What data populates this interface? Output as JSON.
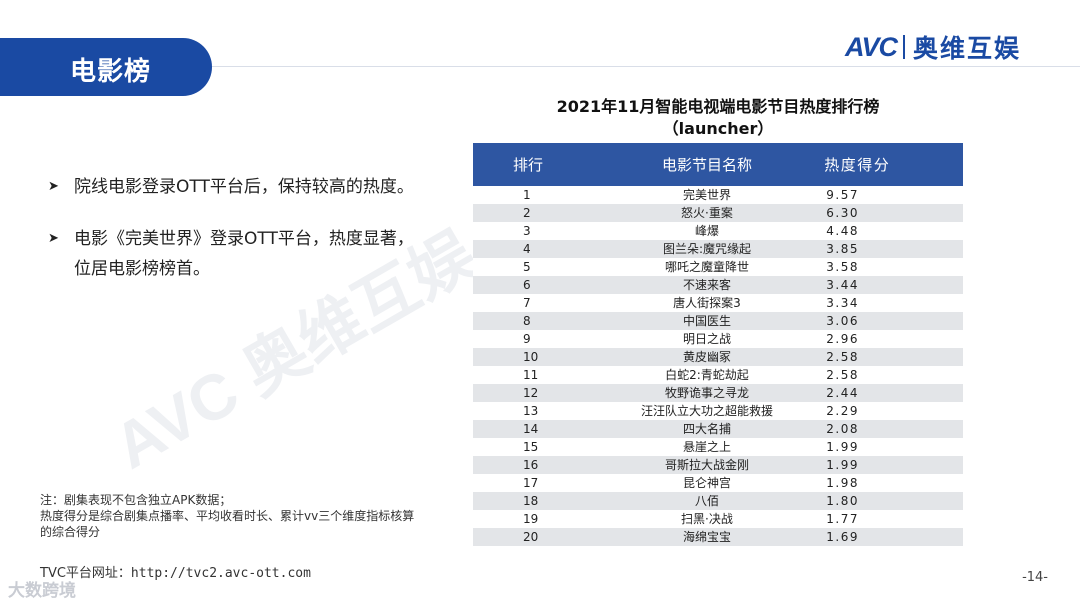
{
  "header": {
    "section_title": "电影榜",
    "logo_avc": "AVC",
    "logo_cn": "奥维互娱"
  },
  "bullets": [
    "院线电影登录OTT平台后，保持较高的热度。",
    "电影《完美世界》登录OTT平台，热度显著，位居电影榜榜首。"
  ],
  "table": {
    "title_line1": "2021年11月智能电视端电影节目热度排行榜",
    "title_line2": "（launcher）",
    "headers": [
      "排行",
      "电影节目名称",
      "热度得分"
    ],
    "rows": [
      {
        "rank": "1",
        "name": "完美世界",
        "score": "9.57"
      },
      {
        "rank": "2",
        "name": "怒火·重案",
        "score": "6.30"
      },
      {
        "rank": "3",
        "name": "峰爆",
        "score": "4.48"
      },
      {
        "rank": "4",
        "name": "图兰朵:魔咒缘起",
        "score": "3.85"
      },
      {
        "rank": "5",
        "name": "哪吒之魔童降世",
        "score": "3.58"
      },
      {
        "rank": "6",
        "name": "不速来客",
        "score": "3.44"
      },
      {
        "rank": "7",
        "name": "唐人街探案3",
        "score": "3.34"
      },
      {
        "rank": "8",
        "name": "中国医生",
        "score": "3.06"
      },
      {
        "rank": "9",
        "name": "明日之战",
        "score": "2.96"
      },
      {
        "rank": "10",
        "name": "黄皮幽冢",
        "score": "2.58"
      },
      {
        "rank": "11",
        "name": "白蛇2:青蛇劫起",
        "score": "2.58"
      },
      {
        "rank": "12",
        "name": "牧野诡事之寻龙",
        "score": "2.44"
      },
      {
        "rank": "13",
        "name": "汪汪队立大功之超能救援",
        "score": "2.29"
      },
      {
        "rank": "14",
        "name": "四大名捕",
        "score": "2.08"
      },
      {
        "rank": "15",
        "name": "悬崖之上",
        "score": "1.99"
      },
      {
        "rank": "16",
        "name": "哥斯拉大战金刚",
        "score": "1.99"
      },
      {
        "rank": "17",
        "name": "昆仑神宫",
        "score": "1.98"
      },
      {
        "rank": "18",
        "name": "八佰",
        "score": "1.80"
      },
      {
        "rank": "19",
        "name": "扫黑·决战",
        "score": "1.77"
      },
      {
        "rank": "20",
        "name": "海绵宝宝",
        "score": "1.69"
      }
    ]
  },
  "footnote": {
    "line1": "注：剧集表现不包含独立APK数据；",
    "line2": "热度得分是综合剧集点播率、平均收看时长、累计vv三个维度指标核算",
    "line3": "的综合得分"
  },
  "footer": {
    "url_label": "TVC平台网址：",
    "url": "http://tvc2.avc-ott.com",
    "page_number": "-14-",
    "corner_logo": "大数跨境"
  },
  "watermark_text": "AVC 奥维互娱",
  "colors": {
    "brand_blue": "#1a4aa3",
    "table_header": "#2e56a2",
    "row_stripe": "#e3e5e8"
  }
}
